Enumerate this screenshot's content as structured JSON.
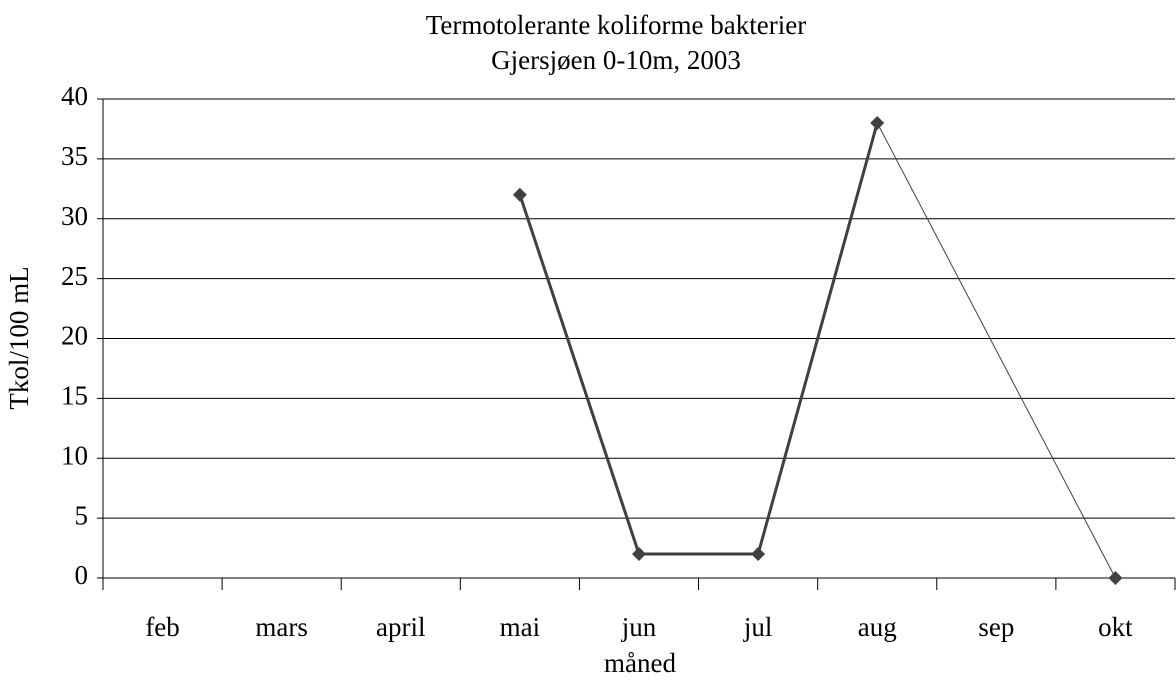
{
  "chart_data": {
    "type": "line",
    "title": "Termotolerante koliforme bakterier",
    "subtitle": "Gjersjøen 0-10m, 2003",
    "x_label": "måned",
    "y_label": "Tkol/100 mL",
    "categories": [
      "feb",
      "mars",
      "april",
      "mai",
      "jun",
      "jul",
      "aug",
      "sep",
      "okt"
    ],
    "values": [
      null,
      null,
      null,
      32,
      2,
      2,
      38,
      null,
      0
    ],
    "color": "#404040",
    "ylim": [
      0,
      40
    ],
    "yticks": [
      0,
      5,
      10,
      15,
      20,
      25,
      30,
      35,
      40
    ],
    "grid": true
  }
}
